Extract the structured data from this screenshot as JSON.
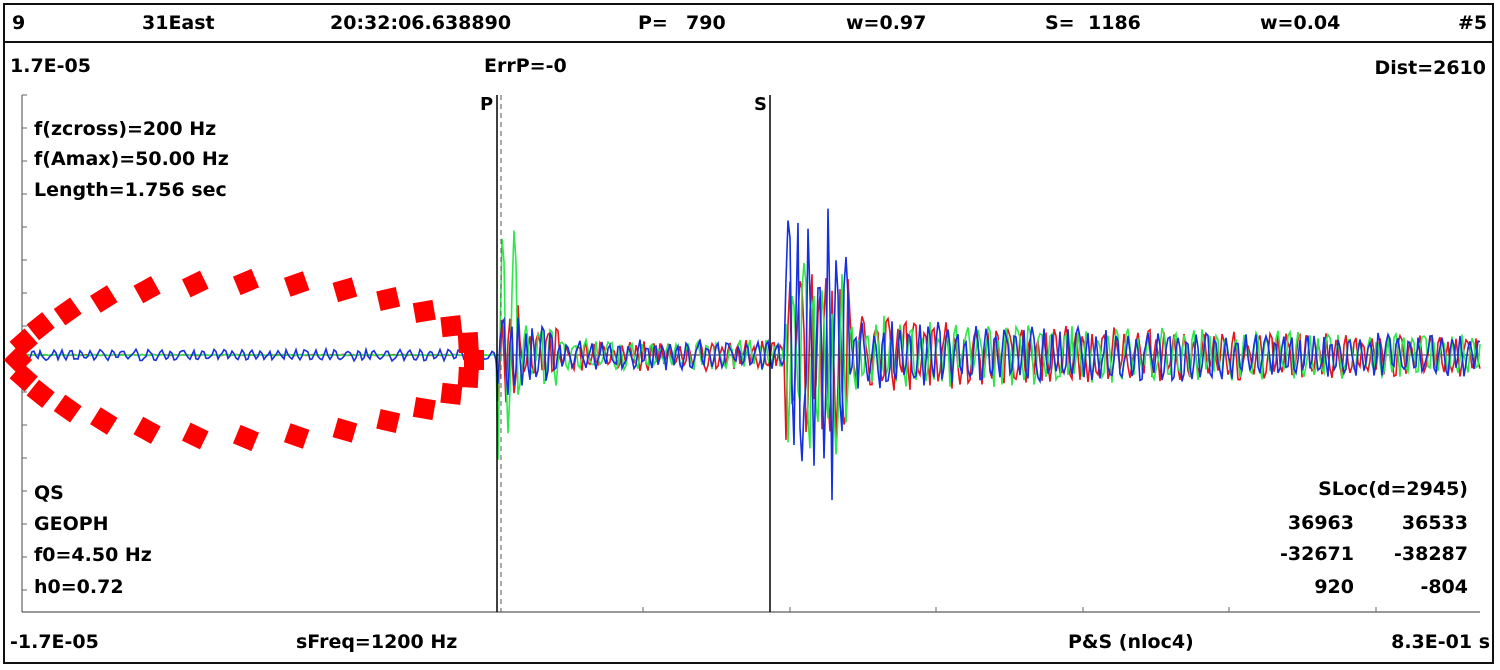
{
  "header": {
    "channel": "9",
    "component": "31East",
    "time": "20:32:06.638890",
    "p_label": "P=",
    "p_value": "790",
    "p_weight": "w=0.97",
    "s_label": "S=",
    "s_value": "1186",
    "s_weight": "w=0.04",
    "index": "#5"
  },
  "top_row": {
    "amp_max": "1.7E-05",
    "err_p": "ErrP=-0",
    "dist": "Dist=2610"
  },
  "info": {
    "fzcross": "f(zcross)=200 Hz",
    "famax": "f(Amax)=50.00 Hz",
    "length": "Length=1.756 sec"
  },
  "sensor": {
    "type": "QS",
    "kind": "GEOPH",
    "f0": "f0=4.50 Hz",
    "h0": "h0=0.72"
  },
  "sloc": {
    "title": "SLoc(d=2945)",
    "rows": [
      [
        "36963",
        "36533"
      ],
      [
        "-32671",
        "-38287"
      ],
      [
        "920",
        "-804"
      ]
    ]
  },
  "footer": {
    "amp_min": "-1.7E-05",
    "sfreq": "sFreq=1200 Hz",
    "method": "P&S (nloc4)",
    "time_scale": "8.3E-01 s"
  },
  "chart_data": {
    "type": "line",
    "x_range": [
      0,
      0.83
    ],
    "y_range": [
      -1.7e-05,
      1.7e-05
    ],
    "picks": [
      {
        "label": "P",
        "sample": 790
      },
      {
        "label": "S",
        "sample": 1186
      }
    ],
    "series_colors": [
      "#e8141c",
      "#2ee84a",
      "#1630e0"
    ],
    "highlight_color": "#ff0000"
  }
}
